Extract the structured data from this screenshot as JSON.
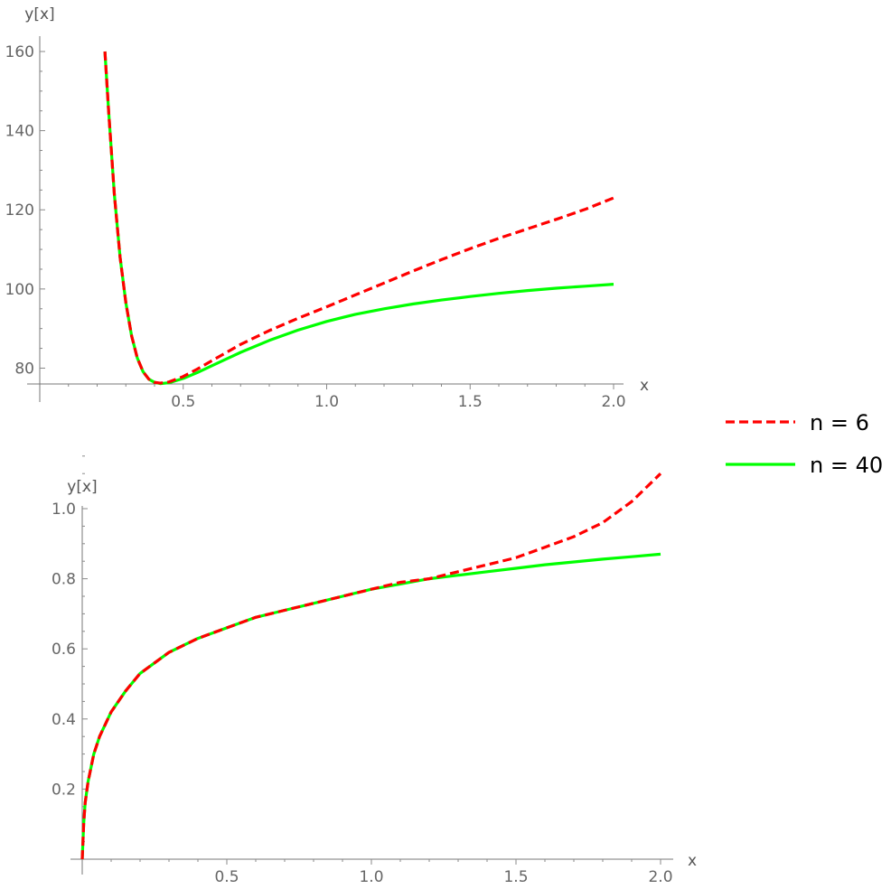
{
  "chart_data": [
    {
      "type": "line",
      "xlabel": "x",
      "ylabel": "y[x]",
      "xlim": [
        0,
        2.0
      ],
      "ylim": [
        76,
        160
      ],
      "axis_origin": {
        "x": 0,
        "y": 76
      },
      "x_major_ticks": [
        0.5,
        1.0,
        1.5,
        2.0
      ],
      "x_tick_labels": [
        "0.5",
        "1.0",
        "1.5",
        "2.0"
      ],
      "y_major_ticks": [
        80,
        100,
        120,
        140,
        160
      ],
      "y_tick_labels": [
        "80",
        "100",
        "120",
        "140",
        "160"
      ],
      "grid": false,
      "series": [
        {
          "name": "n = 6",
          "color": "#ff0000",
          "style": "dashed",
          "x": [
            0.227,
            0.24,
            0.26,
            0.28,
            0.3,
            0.32,
            0.34,
            0.36,
            0.38,
            0.4,
            0.42,
            0.45,
            0.5,
            0.55,
            0.6,
            0.7,
            0.8,
            0.9,
            1.0,
            1.1,
            1.2,
            1.3,
            1.4,
            1.5,
            1.6,
            1.7,
            1.8,
            1.9,
            2.0
          ],
          "y": [
            160,
            145,
            124,
            108,
            96.5,
            88.2,
            82.6,
            79.1,
            77.2,
            76.4,
            76.2,
            76.5,
            77.9,
            79.8,
            81.9,
            86,
            89.5,
            92.6,
            95.5,
            98.5,
            101.5,
            104.5,
            107.4,
            110.2,
            112.8,
            115.2,
            117.6,
            120.1,
            123
          ]
        },
        {
          "name": "n = 40",
          "color": "#00ff00",
          "style": "solid",
          "x": [
            0.227,
            0.24,
            0.26,
            0.28,
            0.3,
            0.32,
            0.34,
            0.36,
            0.38,
            0.4,
            0.42,
            0.45,
            0.5,
            0.55,
            0.6,
            0.7,
            0.8,
            0.9,
            1.0,
            1.1,
            1.2,
            1.3,
            1.4,
            1.5,
            1.6,
            1.7,
            1.8,
            1.9,
            2.0
          ],
          "y": [
            160,
            145,
            124,
            108,
            96.5,
            88.2,
            82.6,
            79.1,
            77.2,
            76.4,
            76.1,
            76.3,
            77.4,
            78.9,
            80.6,
            84,
            87,
            89.6,
            91.8,
            93.6,
            95,
            96.2,
            97.2,
            98.1,
            98.9,
            99.6,
            100.2,
            100.7,
            101.2
          ]
        }
      ]
    },
    {
      "type": "line",
      "xlabel": "x",
      "ylabel": "y[x]",
      "xlim": [
        0,
        2.0
      ],
      "ylim": [
        0,
        1.15
      ],
      "axis_origin": {
        "x": 0,
        "y": 0
      },
      "x_major_ticks": [
        0.5,
        1.0,
        1.5,
        2.0
      ],
      "x_tick_labels": [
        "0.5",
        "1.0",
        "1.5",
        "2.0"
      ],
      "y_major_ticks": [
        0.2,
        0.4,
        0.6,
        0.8,
        1.0
      ],
      "y_tick_labels": [
        "0.2",
        "0.4",
        "0.6",
        "0.8",
        "1.0"
      ],
      "grid": false,
      "series": [
        {
          "name": "n = 6",
          "color": "#ff0000",
          "style": "dashed",
          "x": [
            0,
            0.005,
            0.01,
            0.02,
            0.04,
            0.06,
            0.1,
            0.15,
            0.2,
            0.3,
            0.4,
            0.5,
            0.6,
            0.7,
            0.8,
            0.9,
            1.0,
            1.1,
            1.2,
            1.3,
            1.4,
            1.5,
            1.6,
            1.7,
            1.8,
            1.9,
            2.0
          ],
          "y": [
            0,
            0.1,
            0.16,
            0.22,
            0.3,
            0.35,
            0.42,
            0.48,
            0.53,
            0.59,
            0.63,
            0.66,
            0.69,
            0.71,
            0.73,
            0.75,
            0.77,
            0.79,
            0.8,
            0.82,
            0.84,
            0.86,
            0.89,
            0.92,
            0.96,
            1.02,
            1.1
          ]
        },
        {
          "name": "n = 40",
          "color": "#00ff00",
          "style": "solid",
          "x": [
            0,
            0.005,
            0.01,
            0.02,
            0.04,
            0.06,
            0.1,
            0.15,
            0.2,
            0.3,
            0.4,
            0.5,
            0.6,
            0.7,
            0.8,
            0.9,
            1.0,
            1.1,
            1.2,
            1.3,
            1.4,
            1.5,
            1.6,
            1.7,
            1.8,
            1.9,
            2.0
          ],
          "y": [
            0,
            0.1,
            0.16,
            0.22,
            0.3,
            0.35,
            0.42,
            0.48,
            0.53,
            0.59,
            0.63,
            0.66,
            0.69,
            0.71,
            0.73,
            0.75,
            0.77,
            0.785,
            0.8,
            0.81,
            0.82,
            0.83,
            0.84,
            0.848,
            0.856,
            0.863,
            0.87
          ]
        }
      ]
    }
  ],
  "legend": {
    "placement": "right",
    "items": [
      {
        "label": "n = 6",
        "color": "#ff0000",
        "style": "dashed"
      },
      {
        "label": "n = 40",
        "color": "#00ff00",
        "style": "solid"
      }
    ]
  }
}
